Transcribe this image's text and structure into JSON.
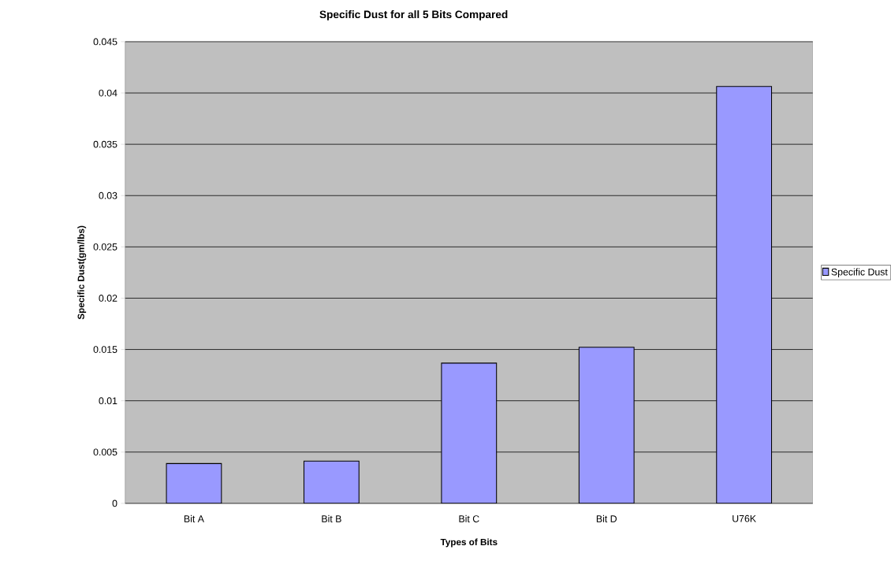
{
  "chart_data": {
    "type": "bar",
    "title": "Specific Dust for all 5 Bits Compared",
    "xlabel": "Types of Bits",
    "ylabel": "Specific Dust(gm/lbs)",
    "categories": [
      "Bit A",
      "Bit B",
      "Bit C",
      "Bit D",
      "U76K"
    ],
    "series": [
      {
        "name": "Specific Dust",
        "color": "#9999ff",
        "values": [
          0.00388,
          0.00412,
          0.01367,
          0.01522,
          0.04064
        ]
      }
    ],
    "ylim": [
      0,
      0.045
    ],
    "yticks": [
      0,
      0.005,
      0.01,
      0.015,
      0.02,
      0.025,
      0.03,
      0.035,
      0.04,
      0.045
    ],
    "grid": "y",
    "legend": "right"
  }
}
